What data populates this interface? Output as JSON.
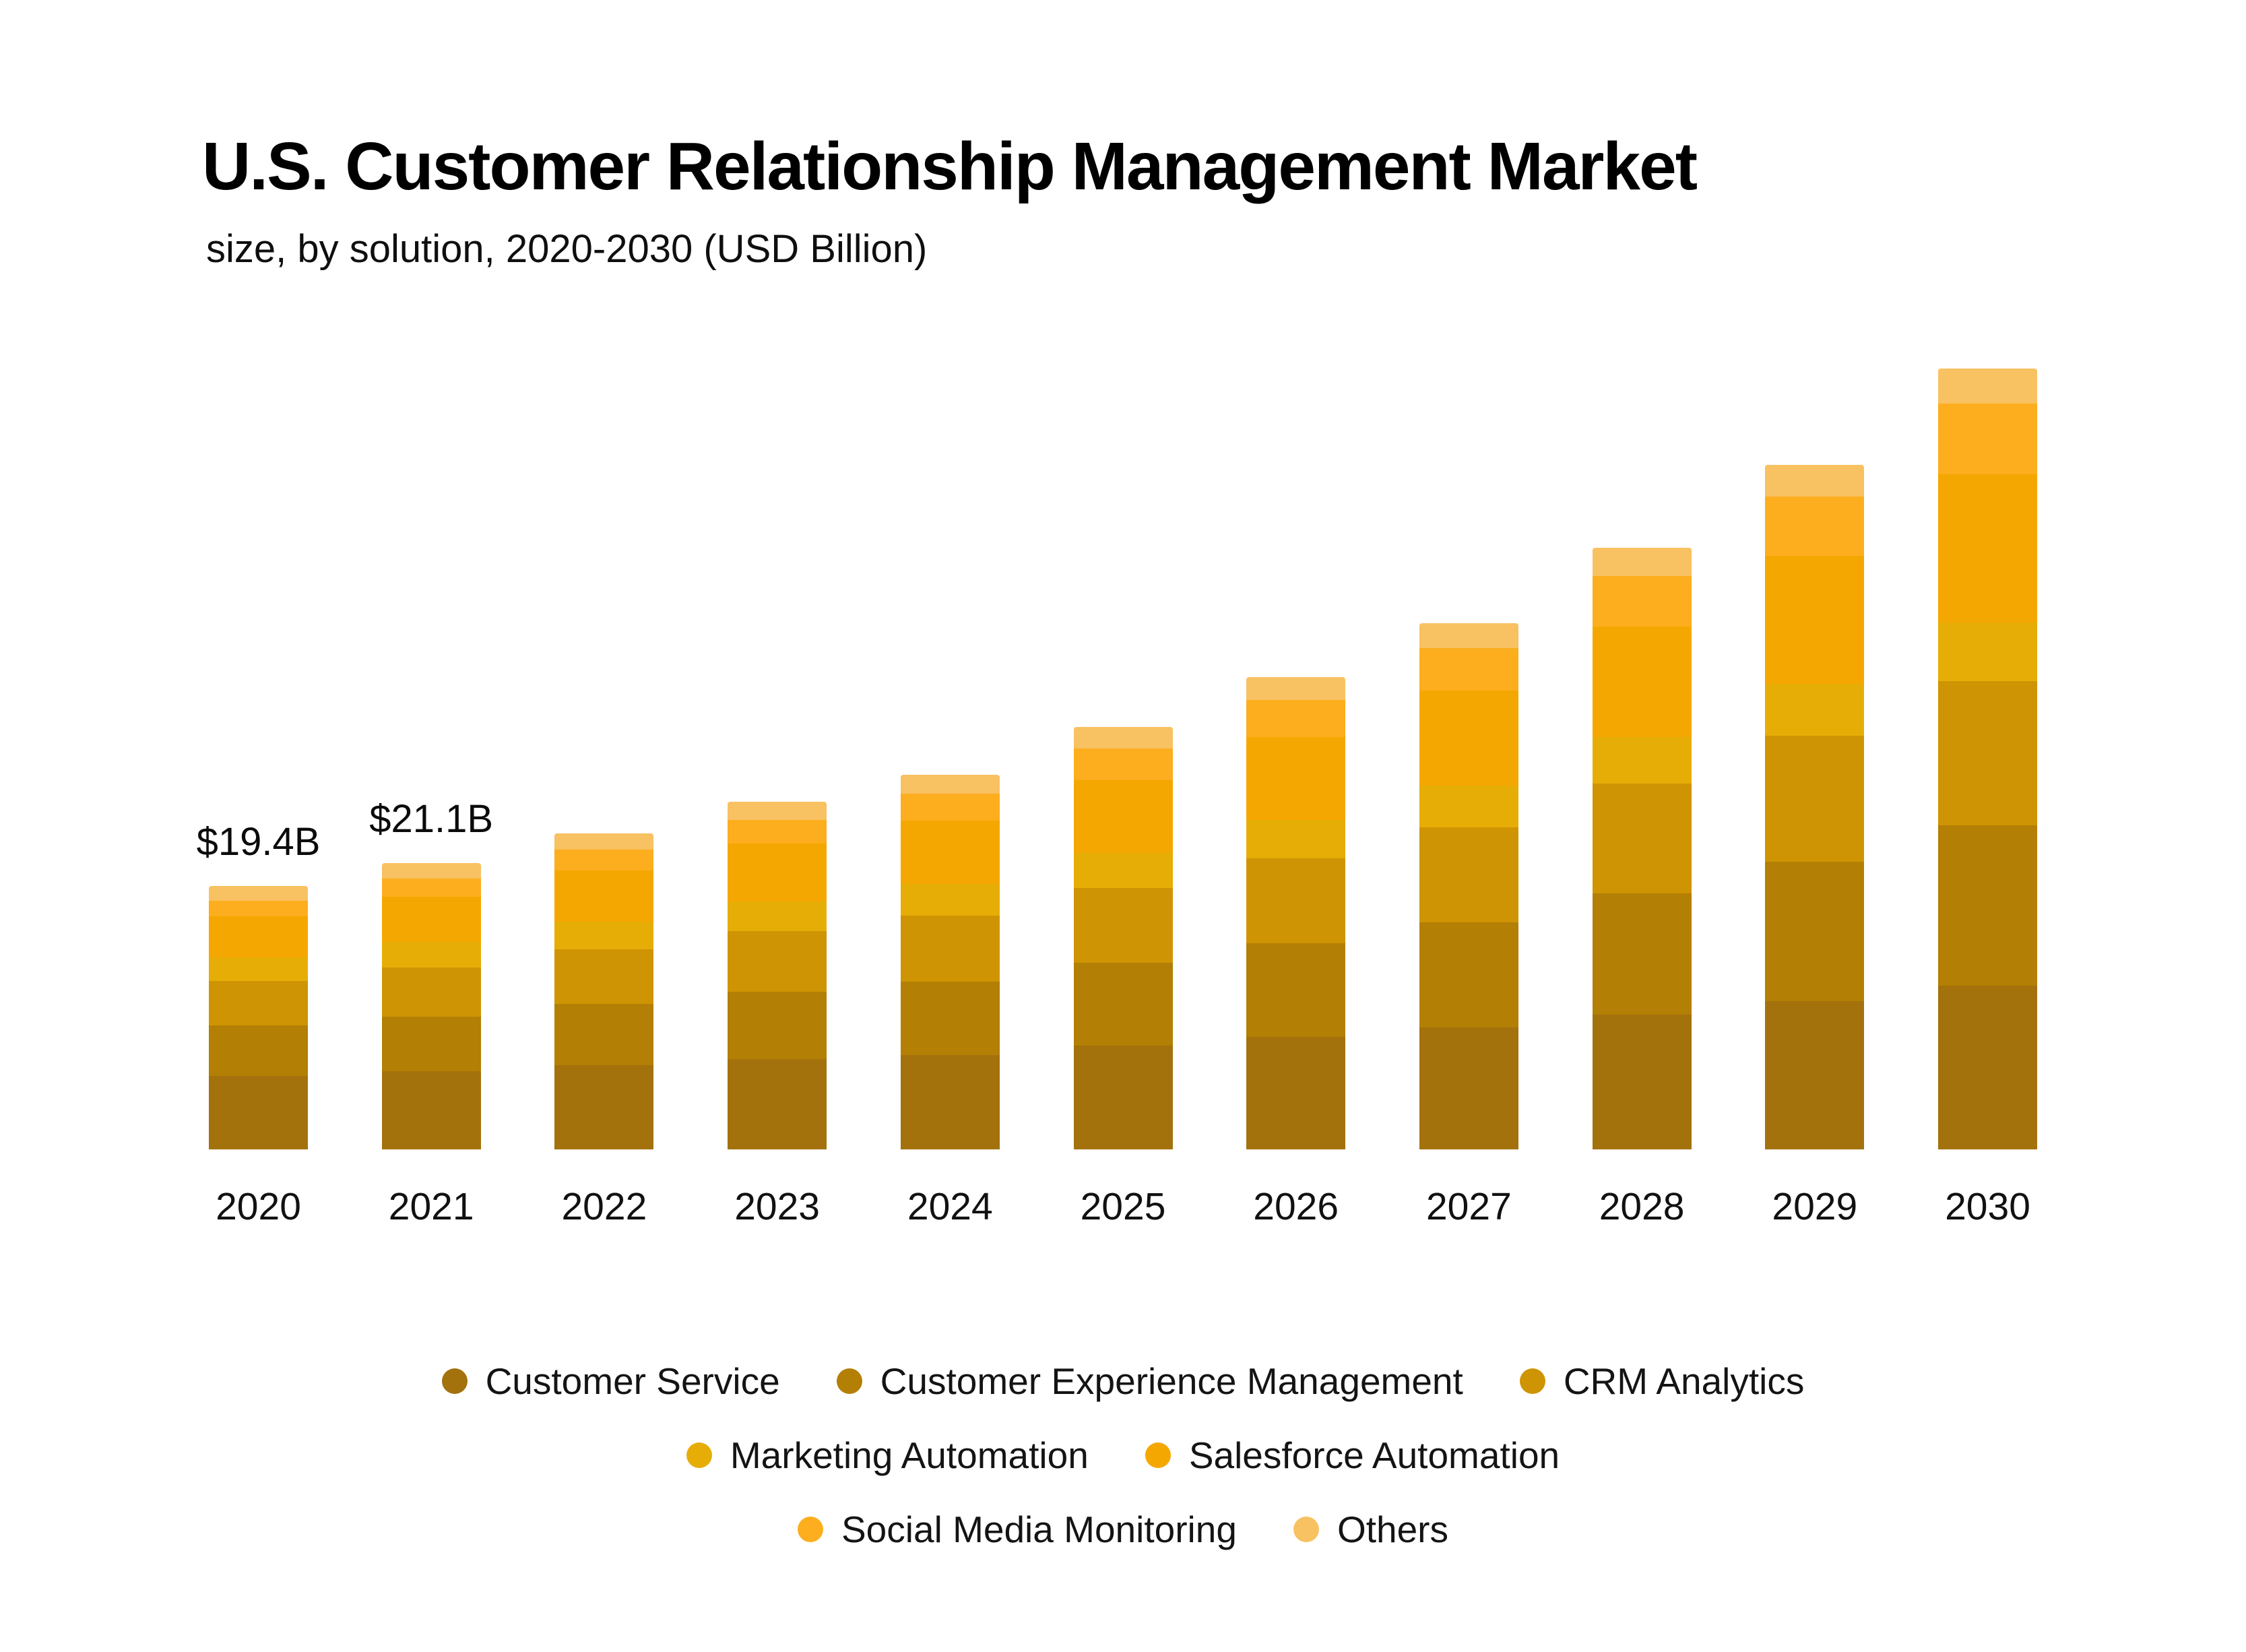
{
  "page": {
    "background": "#FFFFFF"
  },
  "header": {
    "title": "U.S. Customer Relationship Management Market",
    "subtitle": "size, by solution, 2020-2030 (USD Billion)"
  },
  "chart_data": {
    "type": "bar",
    "stacked": true,
    "unit": "USD Billion",
    "title": "U.S. Customer Relationship Management Market size, by solution, 2020-2030 (USD Billion)",
    "categories": [
      "2020",
      "2021",
      "2022",
      "2023",
      "2024",
      "2025",
      "2026",
      "2027",
      "2028",
      "2029",
      "2030"
    ],
    "series": [
      {
        "key": "customer-service",
        "name": "Customer Service",
        "color": "#A3720C",
        "values": [
          5.43,
          5.76,
          6.2,
          6.63,
          6.96,
          7.62,
          8.28,
          8.96,
          9.92,
          10.94,
          12.08
        ]
      },
      {
        "key": "customer-experience-management",
        "name": "Customer Experience Management",
        "color": "#B37F04",
        "values": [
          3.69,
          4.04,
          4.5,
          4.98,
          5.41,
          6.14,
          6.93,
          7.78,
          8.95,
          10.26,
          11.79
        ]
      },
      {
        "key": "crm-analytics",
        "name": "CRM Analytics",
        "color": "#CE9403",
        "values": [
          3.3,
          3.62,
          4.03,
          4.47,
          4.86,
          5.52,
          6.23,
          7.0,
          8.06,
          9.25,
          10.64
        ]
      },
      {
        "key": "marketing-automation",
        "name": "Marketing Automation",
        "color": "#E7AD07",
        "values": [
          1.75,
          1.87,
          2.03,
          2.19,
          2.32,
          2.57,
          2.82,
          3.08,
          3.46,
          3.86,
          4.31
        ]
      },
      {
        "key": "salesforce-automation",
        "name": "Salesforce Automation",
        "color": "#F5A701",
        "values": [
          3.01,
          3.34,
          3.77,
          4.24,
          4.66,
          5.36,
          6.12,
          6.96,
          8.11,
          9.4,
          10.93
        ]
      },
      {
        "key": "social-media-monitoring",
        "name": "Social Media Monitoring",
        "color": "#FCAE1E",
        "values": [
          1.16,
          1.33,
          1.54,
          1.77,
          1.99,
          2.33,
          2.71,
          3.14,
          3.72,
          4.38,
          5.18
        ]
      },
      {
        "key": "others",
        "name": "Others",
        "color": "#F8C161",
        "values": [
          1.07,
          1.14,
          1.23,
          1.33,
          1.41,
          1.56,
          1.71,
          1.86,
          2.08,
          2.32,
          2.59
        ]
      }
    ],
    "totals": [
      19.4,
      21.1,
      23.3,
      25.6,
      27.6,
      31.1,
      34.8,
      38.8,
      44.3,
      50.4,
      57.5
    ],
    "value_labels": [
      {
        "year": "2020",
        "text": "$19.4B"
      },
      {
        "year": "2021",
        "text": "$21.1B"
      }
    ],
    "x_tick_labels": [
      "2020",
      "2021",
      "2022",
      "2023",
      "2024",
      "2025",
      "2026",
      "2027",
      "2028",
      "2029",
      "2030"
    ],
    "y_axis_visible": false,
    "gridlines": false,
    "legend_position": "bottom"
  },
  "legend": {
    "rows": [
      {
        "items": [
          {
            "label": "Customer Service",
            "color": "#A3720C"
          },
          {
            "label": "Customer Experience Management",
            "color": "#B37F04"
          },
          {
            "label": "CRM Analytics",
            "color": "#CE9403"
          }
        ]
      },
      {
        "items": [
          {
            "label": "Marketing Automation",
            "color": "#E7AD07"
          },
          {
            "label": "Salesforce Automation",
            "color": "#F5A701"
          }
        ]
      },
      {
        "items": [
          {
            "label": "Social Media Monitoring",
            "color": "#FCAE1E"
          },
          {
            "label": "Others",
            "color": "#F8C161"
          }
        ]
      }
    ]
  }
}
